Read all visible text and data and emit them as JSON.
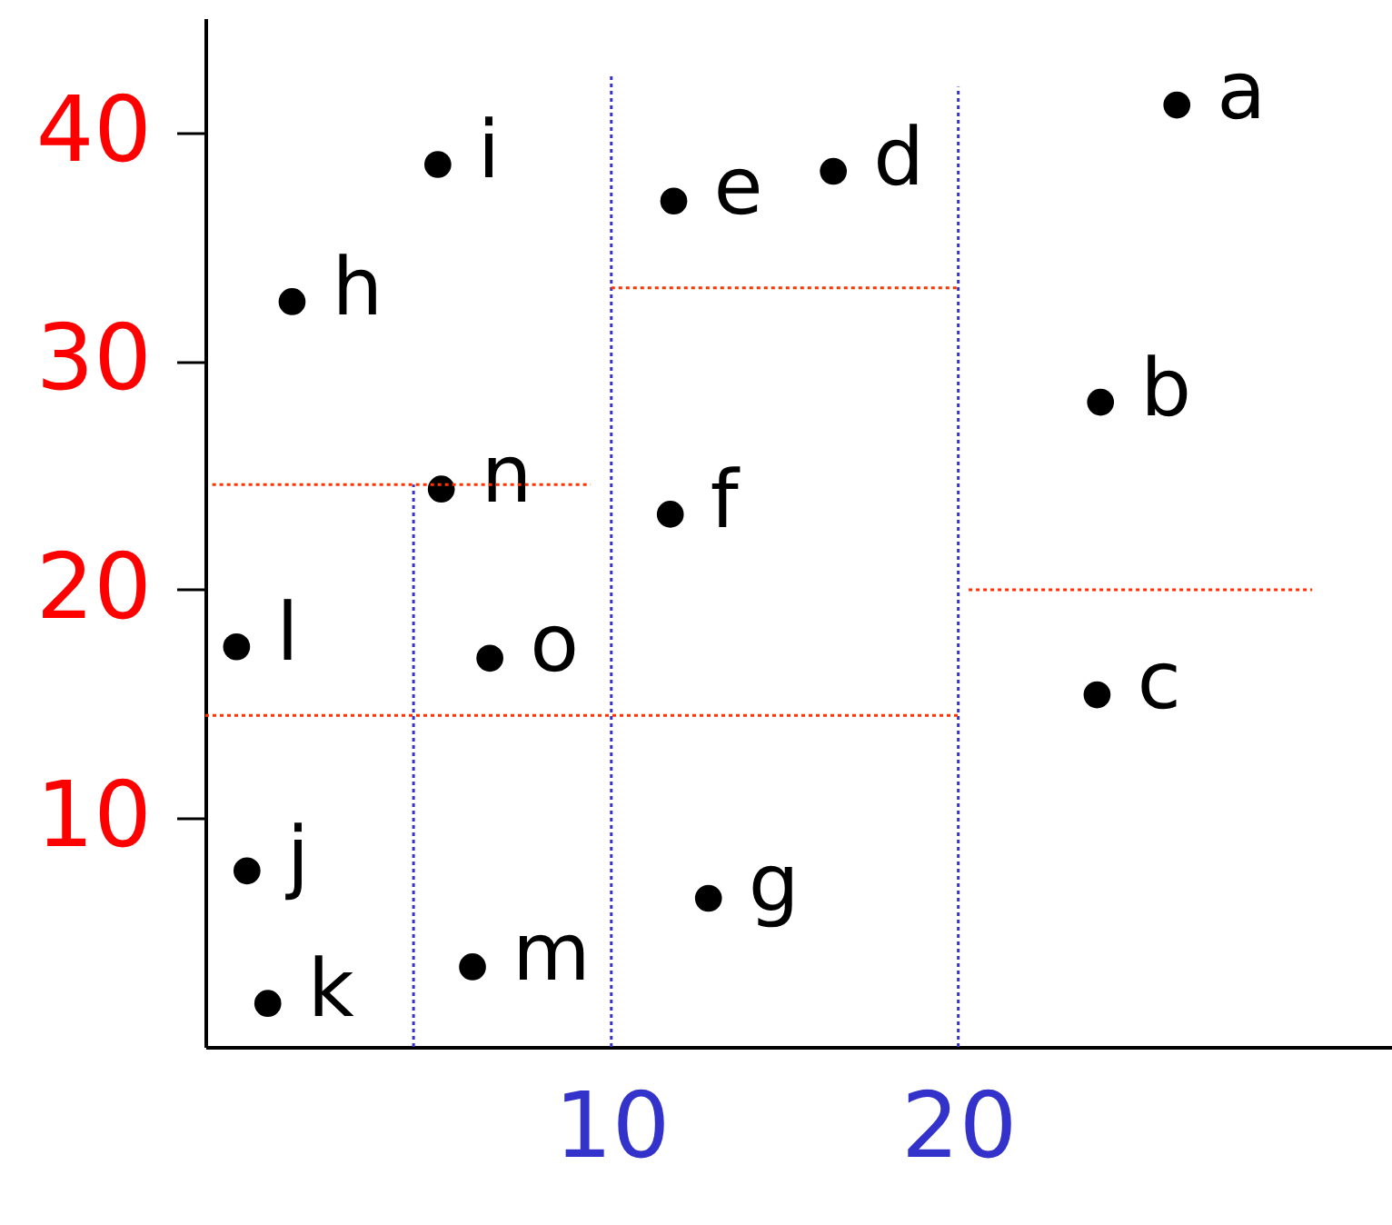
{
  "chart_data": {
    "type": "scatter",
    "xlim": [
      -1.7,
      32.5
    ],
    "ylim": [
      0,
      45
    ],
    "xticks": [
      10,
      20
    ],
    "yticks": [
      10,
      20,
      30,
      40
    ],
    "grid": false,
    "series": [
      {
        "marker": "circle",
        "color": "#000000",
        "x": [
          26.3,
          24.1,
          24.0,
          16.4,
          11.8,
          11.7,
          12.8,
          0.8,
          5.0,
          -0.5,
          0.1,
          -0.8,
          6.0,
          5.1,
          6.5
        ],
        "values": [
          41.2,
          28.2,
          15.4,
          38.3,
          37.0,
          23.3,
          6.5,
          32.6,
          38.6,
          7.7,
          1.9,
          17.5,
          3.5,
          24.4,
          17.0
        ],
        "value_labels": [
          "a",
          "b",
          "c",
          "d",
          "e",
          "f",
          "g",
          "h",
          "i",
          "j",
          "k",
          "l",
          "m",
          "n",
          "o"
        ]
      },
      {
        "type": "line",
        "color": "#3333cc",
        "line_style": "dotted",
        "x": [
          10,
          10
        ],
        "values": [
          0,
          42.5
        ]
      },
      {
        "type": "line",
        "color": "#3333cc",
        "line_style": "dotted",
        "x": [
          20,
          20
        ],
        "values": [
          0,
          42.0
        ]
      },
      {
        "type": "line",
        "color": "#3333cc",
        "line_style": "dotted",
        "x": [
          4.3,
          4.3
        ],
        "values": [
          0,
          24.6
        ]
      },
      {
        "type": "line",
        "color": "#ff3300",
        "line_style": "dotted",
        "x": [
          -1.7,
          20
        ],
        "values": [
          14.5,
          14.5
        ]
      },
      {
        "type": "line",
        "color": "#ff3300",
        "line_style": "dotted",
        "x": [
          -1.5,
          9.4
        ],
        "values": [
          24.6,
          24.6
        ]
      },
      {
        "type": "line",
        "color": "#ff3300",
        "line_style": "dotted",
        "x": [
          10,
          20
        ],
        "values": [
          33.2,
          33.2
        ]
      },
      {
        "type": "line",
        "color": "#ff3300",
        "line_style": "dotted",
        "x": [
          20.3,
          30.2
        ],
        "values": [
          20,
          20
        ]
      }
    ]
  }
}
